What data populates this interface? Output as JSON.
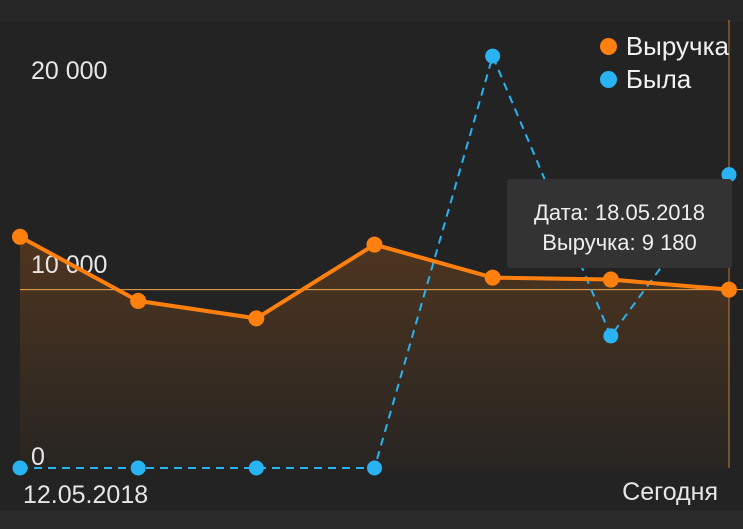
{
  "colors": {
    "background": "#232323",
    "revenue": "#ff7f0f",
    "was": "#29b3f2",
    "highlight_line": "#f5a54a"
  },
  "chart_data": {
    "type": "line",
    "y_ticks": [
      "20 000",
      "10 000",
      "0"
    ],
    "y_tick_values": [
      20000,
      10000,
      0
    ],
    "ylim": [
      0,
      21000
    ],
    "x_tick_labels": {
      "first": "12.05.2018",
      "last": "Сегодня"
    },
    "x_count": 7,
    "series": [
      {
        "name": "Выручка",
        "color": "#ff7f0f",
        "style": "solid-area",
        "values": [
          11900,
          8600,
          7700,
          11500,
          9800,
          9700,
          9180
        ]
      },
      {
        "name": "Была",
        "color": "#29b3f2",
        "style": "dashed",
        "values": [
          0,
          0,
          0,
          0,
          21200,
          6800,
          15100
        ]
      }
    ],
    "highlight_index": 6,
    "grid": false,
    "legend_position": "top-right"
  },
  "tooltip": {
    "date_line": "Дата: 18.05.2018",
    "value_line": "Выручка: 9 180"
  },
  "legend": {
    "items": [
      {
        "label": "Выручка",
        "color": "#ff7f0f"
      },
      {
        "label": "Была",
        "color": "#29b3f2"
      }
    ]
  }
}
